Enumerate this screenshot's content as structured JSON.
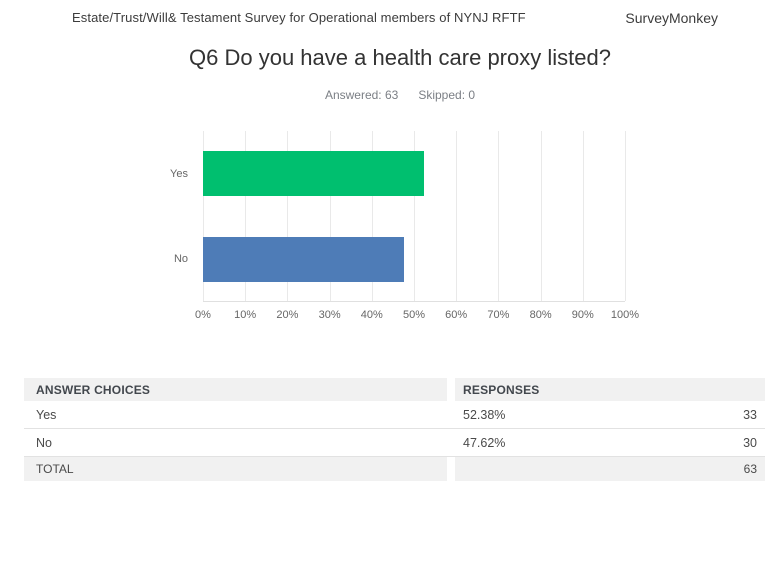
{
  "header": {
    "survey_title": "Estate/Trust/Will& Testament Survey for Operational members of NYNJ RFTF",
    "brand": "SurveyMonkey"
  },
  "question": {
    "title": "Q6 Do you have a health care proxy listed?",
    "answered": "Answered: 63",
    "skipped": "Skipped: 0"
  },
  "chart_data": {
    "type": "bar",
    "orientation": "horizontal",
    "categories": [
      "Yes",
      "No"
    ],
    "values": [
      52.38,
      47.62
    ],
    "colors": [
      "#00bf6f",
      "#4e7cb7"
    ],
    "xlim": [
      0,
      100
    ],
    "x_ticks": [
      "0%",
      "10%",
      "20%",
      "30%",
      "40%",
      "50%",
      "60%",
      "70%",
      "80%",
      "90%",
      "100%"
    ],
    "grid": "vertical",
    "legend": "none",
    "title": "",
    "xlabel": "",
    "ylabel": ""
  },
  "table": {
    "headers": [
      "ANSWER CHOICES",
      "RESPONSES"
    ],
    "rows": [
      {
        "choice": "Yes",
        "percent": "52.38%",
        "count": "33"
      },
      {
        "choice": "No",
        "percent": "47.62%",
        "count": "30"
      }
    ],
    "total_label": "TOTAL",
    "total_count": "63"
  }
}
